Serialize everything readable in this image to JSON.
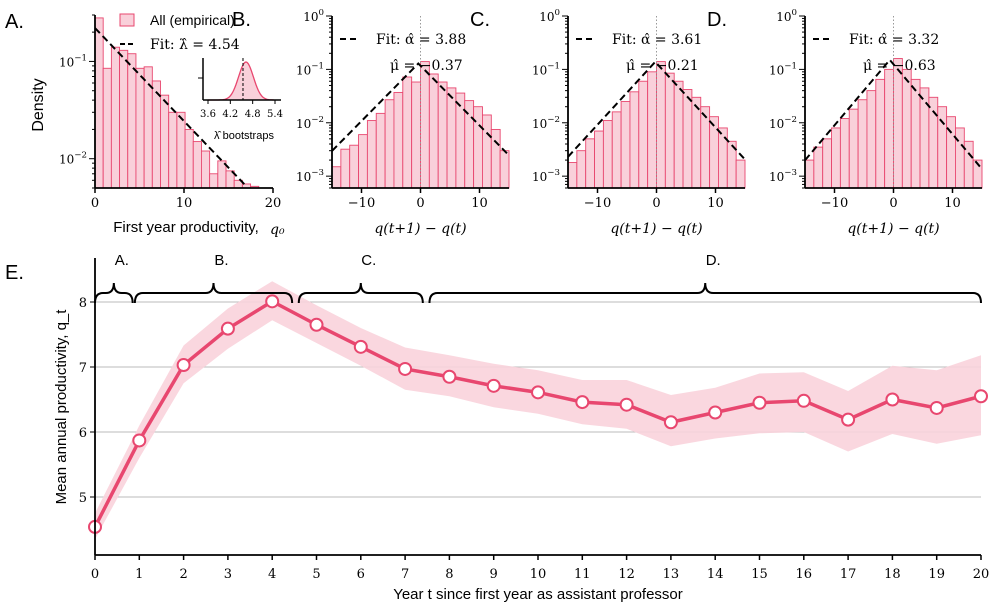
{
  "colors": {
    "accent": "#e8476f",
    "fill": "#f9d0da",
    "band": "#f9d3dc",
    "fit": "#000000",
    "grid": "#bbbbbb"
  },
  "chart_data": [
    {
      "panel": "A.",
      "type": "bar",
      "yscale": "log",
      "xlim": [
        0,
        20
      ],
      "ylim": [
        0.005,
        0.3
      ],
      "xticks": [
        "0",
        "10",
        "20"
      ],
      "yticks": [
        "10^-1",
        "10^-2"
      ],
      "xlabel": "First year productivity, q0",
      "ylabel": "Density",
      "bin_width": 0.92,
      "values": [
        0.28,
        0.085,
        0.14,
        0.13,
        0.12,
        0.085,
        0.088,
        0.063,
        0.045,
        0.03,
        0.03,
        0.02,
        0.015,
        0.012,
        0.007,
        0.0095,
        0.0075,
        0.006,
        0.0055,
        0.0052
      ],
      "legend": {
        "empirical": "All (empirical)",
        "fit": "Fit: λ̂ = 4.54"
      },
      "fit": {
        "type": "exponential",
        "lambda": 4.54
      },
      "inset": {
        "xlabel": "λ̂ bootstraps",
        "xticks": [
          "3.6",
          "4.2",
          "4.8",
          "5.4"
        ],
        "mean": 4.62,
        "sd": 0.2,
        "marker": 4.54
      }
    },
    {
      "panel": "B.",
      "type": "bar",
      "yscale": "log",
      "xlim": [
        -15,
        15
      ],
      "ylim": [
        0.0006,
        1
      ],
      "xticks": [
        "−10",
        "0",
        "10"
      ],
      "yticks": [
        "10^0",
        "10^-1",
        "10^-2",
        "10^-3"
      ],
      "xlabel": "q(t+1) − q(t)",
      "bin_width": 1.5,
      "values": [
        0.0015,
        0.0032,
        0.0038,
        0.006,
        0.011,
        0.015,
        0.027,
        0.037,
        0.072,
        0.058,
        0.14,
        0.082,
        0.058,
        0.045,
        0.036,
        0.026,
        0.02,
        0.014,
        0.0075,
        0.003
      ],
      "fit": {
        "type": "laplace",
        "alpha": 3.88,
        "mu": -0.37
      },
      "fit_text": "Fit: α̂ = 3.88",
      "mu_text": "μ̂ = −0.37"
    },
    {
      "panel": "C.",
      "type": "bar",
      "yscale": "log",
      "xlim": [
        -15,
        15
      ],
      "ylim": [
        0.0006,
        1
      ],
      "xticks": [
        "−10",
        "0",
        "10"
      ],
      "yticks": [
        "10^0",
        "10^-1",
        "10^-2",
        "10^-3"
      ],
      "xlabel": "q(t+1) − q(t)",
      "bin_width": 1.5,
      "values": [
        0.0018,
        0.003,
        0.005,
        0.007,
        0.011,
        0.016,
        0.025,
        0.038,
        0.06,
        0.09,
        0.14,
        0.085,
        0.06,
        0.042,
        0.03,
        0.02,
        0.013,
        0.008,
        0.0045,
        0.002
      ],
      "fit": {
        "type": "laplace",
        "alpha": 3.61,
        "mu": -0.21
      },
      "fit_text": "Fit: α̂ = 3.61",
      "mu_text": "μ̂ = −0.21"
    },
    {
      "panel": "D.",
      "type": "bar",
      "yscale": "log",
      "xlim": [
        -15,
        15
      ],
      "ylim": [
        0.0006,
        1
      ],
      "xticks": [
        "−10",
        "0",
        "10"
      ],
      "yticks": [
        "10^0",
        "10^-1",
        "10^-2",
        "10^-3"
      ],
      "xlabel": "q(t+1) − q(t)",
      "bin_width": 1.5,
      "values": [
        0.002,
        0.0035,
        0.005,
        0.008,
        0.012,
        0.018,
        0.027,
        0.04,
        0.065,
        0.1,
        0.16,
        0.1,
        0.065,
        0.045,
        0.03,
        0.02,
        0.013,
        0.008,
        0.0045,
        0.002
      ],
      "fit": {
        "type": "laplace",
        "alpha": 3.32,
        "mu": -0.63
      },
      "fit_text": "Fit: α̂ = 3.32",
      "mu_text": "μ̂ = −0.63"
    },
    {
      "panel": "E.",
      "type": "line",
      "xlim": [
        0,
        20
      ],
      "ylim": [
        4.2,
        8.7
      ],
      "xlabel": "Year t since first year as assistant professor",
      "ylabel": "Mean annual productivity, q_t",
      "yticks": [
        "5",
        "6",
        "7",
        "8"
      ],
      "grid": true,
      "x": [
        0,
        1,
        2,
        3,
        4,
        5,
        6,
        7,
        8,
        9,
        10,
        11,
        12,
        13,
        14,
        15,
        16,
        17,
        18,
        19,
        20
      ],
      "y": [
        4.54,
        5.87,
        7.03,
        7.59,
        8.01,
        7.65,
        7.31,
        6.97,
        6.85,
        6.71,
        6.61,
        6.46,
        6.42,
        6.15,
        6.3,
        6.45,
        6.48,
        6.19,
        6.5,
        6.37,
        6.55
      ],
      "lower": [
        4.35,
        5.6,
        6.75,
        7.28,
        7.72,
        7.37,
        7.02,
        6.65,
        6.55,
        6.38,
        6.28,
        6.12,
        6.05,
        5.78,
        5.9,
        5.98,
        6.0,
        5.7,
        5.97,
        5.82,
        5.95
      ],
      "upper": [
        4.75,
        6.1,
        7.33,
        7.9,
        8.32,
        7.95,
        7.6,
        7.3,
        7.18,
        7.05,
        6.95,
        6.8,
        6.8,
        6.57,
        6.68,
        6.9,
        6.92,
        6.63,
        7.02,
        6.95,
        7.18
      ],
      "brackets": [
        {
          "label": "A.",
          "from": 0,
          "to": 0.85
        },
        {
          "label": "B.",
          "from": 0.9,
          "to": 4.45
        },
        {
          "label": "C.",
          "from": 4.6,
          "to": 7.4
        },
        {
          "label": "D.",
          "from": 7.55,
          "to": 20
        }
      ]
    }
  ]
}
